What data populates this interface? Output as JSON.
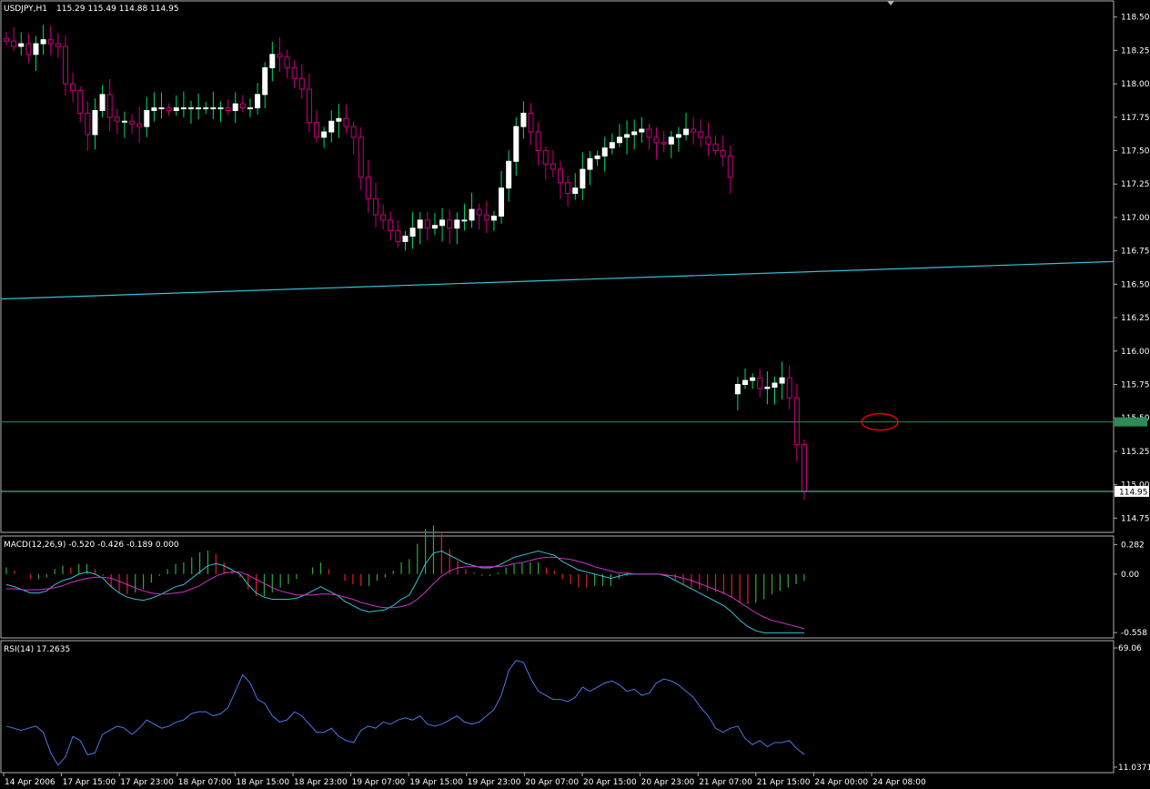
{
  "header": {
    "symbol_info": "USDJPY,H1",
    "ohlc": "115.29 115.49 114.88 114.95"
  },
  "colors": {
    "background": "#000000",
    "bull_candle": "#ffffff",
    "bear_candle": "#c8007f",
    "wick_up": "#00dd66",
    "wick_down": "#c8007f",
    "trendline": "#33c3d6",
    "bid_line": "#2e8b57",
    "ask_line": "#66ccbb",
    "macd_main": "#33c3d6",
    "macd_signal": "#cc33cc",
    "macd_hist_up": "#2ea83a",
    "macd_hist_down": "#e02020",
    "rsi_line": "#4a78e8",
    "annotation_circle": "#ff0000"
  },
  "chart_data": [
    {
      "type": "candlestick",
      "instrument": "USDJPY",
      "timeframe": "H1",
      "y_ticks": [
        "118.50",
        "118.25",
        "118.00",
        "117.75",
        "117.50",
        "117.25",
        "117.00",
        "116.75",
        "116.50",
        "116.25",
        "116.00",
        "115.75",
        "115.50",
        "115.25",
        "115.00",
        "114.75"
      ],
      "ylim": [
        114.65,
        118.6
      ],
      "current_price_label": "114.95",
      "current_price": 114.95,
      "bid_line_price": 115.47,
      "trendline": {
        "from": 116.39,
        "to": 116.67
      },
      "gap_after_candle": 99,
      "close_series": [
        118.32,
        118.28,
        118.3,
        118.22,
        118.3,
        118.33,
        118.3,
        118.28,
        118.0,
        117.95,
        117.78,
        117.62,
        117.8,
        117.92,
        117.75,
        117.72,
        117.72,
        117.7,
        117.68,
        117.8,
        117.82,
        117.82,
        117.8,
        117.82,
        117.82,
        117.82,
        117.82,
        117.82,
        117.82,
        117.82,
        117.8,
        117.85,
        117.82,
        117.82,
        117.92,
        118.12,
        118.22,
        118.2,
        118.12,
        118.04,
        117.96,
        117.71,
        117.6,
        117.64,
        117.72,
        117.74,
        117.68,
        117.6,
        117.3,
        117.14,
        117.02,
        116.98,
        116.9,
        116.82,
        116.86,
        116.92,
        116.98,
        116.92,
        116.94,
        116.98,
        116.92,
        116.98,
        116.98,
        117.06,
        117.02,
        116.98,
        117.01,
        117.22,
        117.42,
        117.68,
        117.78,
        117.64,
        117.5,
        117.4,
        117.36,
        117.26,
        117.18,
        117.22,
        117.36,
        117.44,
        117.46,
        117.52,
        117.56,
        117.6,
        117.62,
        117.64,
        117.66,
        117.6,
        117.56,
        117.55,
        117.6,
        117.62,
        117.66,
        117.64,
        117.6,
        117.55,
        117.5,
        117.46,
        117.3,
        115.75,
        115.78,
        115.8,
        115.72,
        115.73,
        115.76,
        115.8,
        115.65,
        115.3,
        114.95
      ],
      "series": [
        {
          "name": "USDJPY,H1",
          "ohlc": "115.29 115.49 114.88 114.95"
        }
      ]
    },
    {
      "type": "bar+line",
      "indicator": "MACD",
      "label": "MACD(12,26,9) -0.520 -0.426 -0.189 0.000",
      "y_ticks": [
        "0.282",
        "0.00",
        "-0.558"
      ],
      "ylim": [
        -0.6,
        0.32
      ],
      "main_series": [
        -0.1,
        -0.12,
        -0.15,
        -0.18,
        -0.18,
        -0.16,
        -0.1,
        -0.06,
        -0.04,
        0.0,
        0.02,
        0.0,
        -0.04,
        -0.12,
        -0.18,
        -0.22,
        -0.24,
        -0.25,
        -0.23,
        -0.2,
        -0.16,
        -0.12,
        -0.1,
        -0.04,
        0.02,
        0.08,
        0.1,
        0.08,
        0.04,
        0.0,
        -0.1,
        -0.18,
        -0.22,
        -0.24,
        -0.24,
        -0.24,
        -0.23,
        -0.2,
        -0.16,
        -0.12,
        -0.16,
        -0.2,
        -0.26,
        -0.3,
        -0.34,
        -0.36,
        -0.35,
        -0.34,
        -0.3,
        -0.24,
        -0.2,
        -0.06,
        0.1,
        0.2,
        0.22,
        0.18,
        0.14,
        0.1,
        0.08,
        0.06,
        0.06,
        0.08,
        0.12,
        0.16,
        0.18,
        0.2,
        0.22,
        0.2,
        0.18,
        0.12,
        0.08,
        0.04,
        0.02,
        0.0,
        -0.02,
        -0.04,
        -0.02,
        0.0,
        0.0,
        0.0,
        0.0,
        0.0,
        -0.02,
        -0.06,
        -0.1,
        -0.14,
        -0.18,
        -0.22,
        -0.26,
        -0.3,
        -0.36,
        -0.44,
        -0.5,
        -0.54,
        -0.56,
        -0.56,
        -0.56,
        -0.56,
        -0.56,
        -0.56
      ],
      "signal_series": [
        -0.14,
        -0.14,
        -0.15,
        -0.15,
        -0.15,
        -0.14,
        -0.13,
        -0.11,
        -0.08,
        -0.06,
        -0.04,
        -0.03,
        -0.03,
        -0.04,
        -0.07,
        -0.1,
        -0.13,
        -0.16,
        -0.18,
        -0.19,
        -0.19,
        -0.18,
        -0.17,
        -0.14,
        -0.11,
        -0.06,
        -0.02,
        0.01,
        0.02,
        0.02,
        -0.01,
        -0.05,
        -0.09,
        -0.13,
        -0.16,
        -0.18,
        -0.2,
        -0.2,
        -0.2,
        -0.19,
        -0.19,
        -0.2,
        -0.22,
        -0.24,
        -0.27,
        -0.29,
        -0.31,
        -0.32,
        -0.32,
        -0.31,
        -0.29,
        -0.24,
        -0.17,
        -0.09,
        -0.02,
        0.03,
        0.06,
        0.07,
        0.07,
        0.07,
        0.07,
        0.07,
        0.08,
        0.1,
        0.11,
        0.13,
        0.15,
        0.16,
        0.16,
        0.15,
        0.14,
        0.12,
        0.1,
        0.07,
        0.05,
        0.03,
        0.01,
        0.01,
        0.0,
        0.0,
        0.0,
        0.0,
        -0.01,
        -0.02,
        -0.04,
        -0.06,
        -0.09,
        -0.12,
        -0.15,
        -0.18,
        -0.22,
        -0.27,
        -0.32,
        -0.37,
        -0.41,
        -0.44,
        -0.46,
        -0.48,
        -0.5,
        -0.52
      ],
      "histogram_range": [
        -0.42,
        0.22
      ]
    },
    {
      "type": "line",
      "indicator": "RSI",
      "label": "RSI(14) 17.2635",
      "y_ticks": [
        "69.06",
        "11.0371"
      ],
      "ylim": [
        11.0371,
        69.06
      ],
      "values": [
        31,
        30,
        29,
        30,
        31,
        28,
        18,
        12,
        16,
        26,
        24,
        17,
        18,
        27,
        29,
        31,
        30,
        27,
        30,
        34,
        32,
        30,
        31,
        33,
        34,
        37,
        38,
        38,
        36,
        37,
        40,
        48,
        56,
        52,
        44,
        42,
        36,
        33,
        34,
        38,
        36,
        32,
        28,
        28,
        30,
        26,
        24,
        23,
        29,
        31,
        30,
        33,
        32,
        34,
        35,
        34,
        36,
        32,
        31,
        32,
        34,
        36,
        33,
        32,
        33,
        36,
        39,
        46,
        58,
        63,
        62,
        54,
        48,
        46,
        44,
        44,
        43,
        45,
        50,
        48,
        50,
        52,
        53,
        51,
        48,
        49,
        46,
        47,
        52,
        54,
        53,
        51,
        48,
        45,
        40,
        36,
        30,
        28,
        30,
        31,
        25,
        22,
        24,
        21,
        23,
        23,
        24,
        20,
        17.26
      ],
      "gap_after_point": 99
    }
  ],
  "time_axis": {
    "labels": [
      "14 Apr 2006",
      "17 Apr 15:00",
      "17 Apr 23:00",
      "18 Apr 07:00",
      "18 Apr 15:00",
      "18 Apr 23:00",
      "19 Apr 07:00",
      "19 Apr 15:00",
      "19 Apr 23:00",
      "20 Apr 07:00",
      "20 Apr 15:00",
      "20 Apr 23:00",
      "21 Apr 07:00",
      "21 Apr 15:00",
      "24 Apr 00:00",
      "24 Apr 08:00"
    ]
  }
}
